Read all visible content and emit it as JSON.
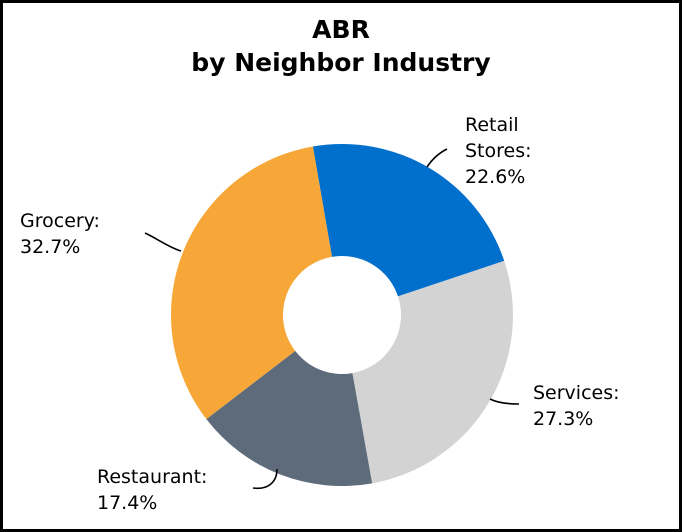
{
  "chart_data": {
    "type": "donut",
    "title": "ABR",
    "subtitle": "by Neighbor Industry",
    "categories": [
      "Retail Stores:",
      "Services:",
      "Restaurant:",
      "Grocery:"
    ],
    "values": [
      22.6,
      27.3,
      17.4,
      32.7
    ],
    "value_labels": [
      "22.6%",
      "27.3%",
      "17.4%",
      "32.7%"
    ],
    "colors": [
      "#0070cc",
      "#d3d3d3",
      "#5d6b7b",
      "#f7a738"
    ]
  }
}
